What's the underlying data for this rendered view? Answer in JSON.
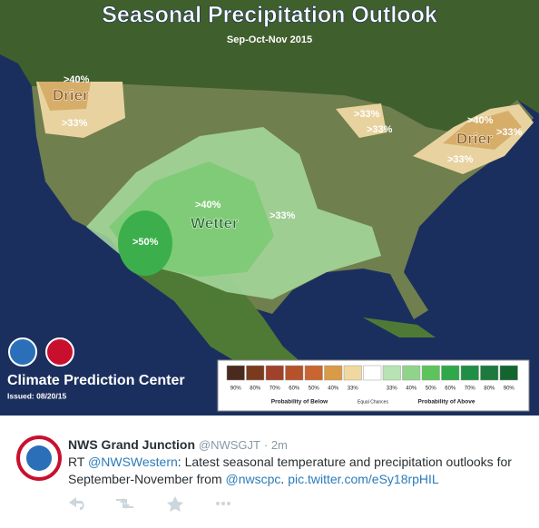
{
  "map": {
    "title": "Seasonal Precipitation Outlook",
    "subtitle": "Sep-Oct-Nov 2015",
    "region_labels": [
      ">40%",
      "Drier",
      ">33%",
      ">33%",
      ">33%",
      ">40%",
      "Drier",
      ">33%",
      ">33%",
      ">40%",
      "Wetter",
      ">33%",
      ">50%"
    ],
    "agency": "Climate Prediction Center",
    "issued": "Issued: 08/20/15",
    "legend": {
      "ticks": [
        "90%",
        "80%",
        "70%",
        "60%",
        "50%",
        "40%",
        "33%",
        "33%",
        "40%",
        "50%",
        "60%",
        "70%",
        "80%",
        "90%"
      ],
      "below": "Probability of Below",
      "equal": "Equal Chances",
      "above": "Probability of Above"
    }
  },
  "tweet": {
    "name": "NWS Grand Junction",
    "handle": "@NWSGJT",
    "time": "· 2m",
    "text_parts": [
      "RT ",
      "@NWSWestern",
      ": Latest seasonal temperature and precipitation outlooks for September-November from ",
      "@nwscpc",
      ". ",
      "pic.twitter.com/eSy18rpHIL"
    ]
  }
}
